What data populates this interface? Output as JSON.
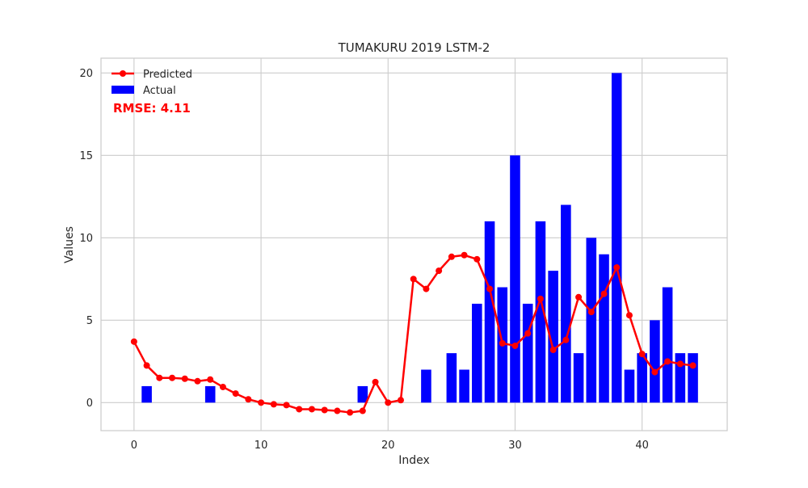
{
  "chart_data": {
    "type": "bar",
    "title": "TUMAKURU 2019 LSTM-2",
    "xlabel": "Index",
    "ylabel": "Values",
    "xlim": [
      -2.6,
      46.7
    ],
    "ylim": [
      -1.7,
      20.9
    ],
    "x_ticks": [
      0,
      10,
      20,
      30,
      40
    ],
    "y_ticks": [
      0,
      5,
      10,
      15,
      20
    ],
    "grid": true,
    "legend_position": "top-left",
    "annotation": "RMSE: 4.11",
    "x": [
      0,
      1,
      2,
      3,
      4,
      5,
      6,
      7,
      8,
      9,
      10,
      11,
      12,
      13,
      14,
      15,
      16,
      17,
      18,
      19,
      20,
      21,
      22,
      23,
      24,
      25,
      26,
      27,
      28,
      29,
      30,
      31,
      32,
      33,
      34,
      35,
      36,
      37,
      38,
      39,
      40,
      41,
      42,
      43,
      44
    ],
    "series": [
      {
        "name": "Actual",
        "kind": "bar",
        "color": "#0000ff",
        "values": [
          0,
          1,
          0,
          0,
          0,
          0,
          1,
          0,
          0,
          0,
          0,
          0,
          0,
          0,
          0,
          0,
          0,
          0,
          1,
          0,
          0,
          0,
          0,
          2,
          0,
          3,
          2,
          6,
          11,
          7,
          15,
          6,
          11,
          8,
          12,
          3,
          10,
          9,
          20,
          2,
          3,
          5,
          7,
          3,
          3
        ]
      },
      {
        "name": "Predicted",
        "kind": "line",
        "color": "#ff0000",
        "values": [
          3.7,
          2.25,
          1.5,
          1.5,
          1.45,
          1.3,
          1.4,
          0.95,
          0.55,
          0.2,
          0.0,
          -0.1,
          -0.15,
          -0.4,
          -0.4,
          -0.45,
          -0.5,
          -0.6,
          -0.5,
          1.25,
          0.0,
          0.15,
          7.5,
          6.9,
          8.0,
          8.85,
          8.95,
          8.7,
          6.9,
          3.6,
          3.45,
          4.2,
          6.3,
          3.2,
          3.8,
          6.4,
          5.5,
          6.6,
          8.2,
          5.3,
          2.95,
          1.85,
          2.5,
          2.35,
          2.25
        ]
      }
    ]
  }
}
